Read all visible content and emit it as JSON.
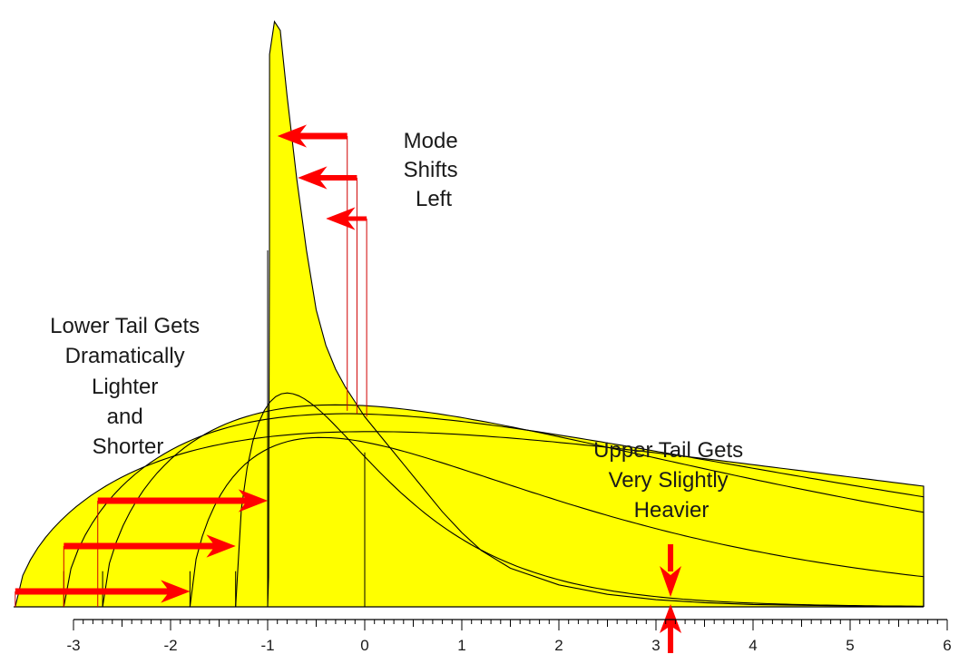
{
  "chart_data": {
    "type": "area",
    "title": "",
    "xlabel": "",
    "ylabel": "",
    "xlim": [
      -3.5,
      6
    ],
    "xticks": [
      -3,
      -2,
      -1,
      0,
      1,
      2,
      3,
      4,
      5,
      6
    ],
    "ylim": [
      0,
      1.0
    ],
    "grid": false,
    "legend": "none",
    "curves": [
      {
        "lower_bound": -3.6,
        "mode": 0.05,
        "peak": 0.295
      },
      {
        "lower_bound": -3.1,
        "mode": -0.2,
        "peak": 0.325
      },
      {
        "lower_bound": -2.7,
        "mode": -0.3,
        "peak": 0.34
      },
      {
        "lower_bound": -1.8,
        "mode": -0.45,
        "peak": 0.285
      },
      {
        "lower_bound": -1.33,
        "mode": -0.8,
        "peak": 0.36
      },
      {
        "lower_bound": -1.0,
        "mode": -0.93,
        "peak": 0.985
      }
    ],
    "annotations": [
      {
        "text": [
          "Mode",
          "Shifts",
          "Left"
        ]
      },
      {
        "text": [
          "Lower Tail Gets",
          "Dramatically",
          "Lighter",
          "and",
          "Shorter"
        ]
      },
      {
        "text": [
          "Upper Tail Gets",
          "Very Slightly",
          "Heavier"
        ]
      }
    ],
    "mode_arrows": [
      {
        "from": -0.18,
        "to": -0.88
      },
      {
        "from": -0.08,
        "to": -0.67
      },
      {
        "from": 0.02,
        "to": -0.38
      }
    ],
    "tail_arrows": [
      {
        "from": -2.75,
        "to": -1.0
      },
      {
        "from": -3.1,
        "to": -1.33
      },
      {
        "from": -3.6,
        "to": -1.8
      }
    ],
    "upper_tail_point": 3.15,
    "colors": {
      "fill": "#ffff00",
      "curve": "#000000",
      "arrow": "#ff0000",
      "marker": "#c00000"
    }
  }
}
